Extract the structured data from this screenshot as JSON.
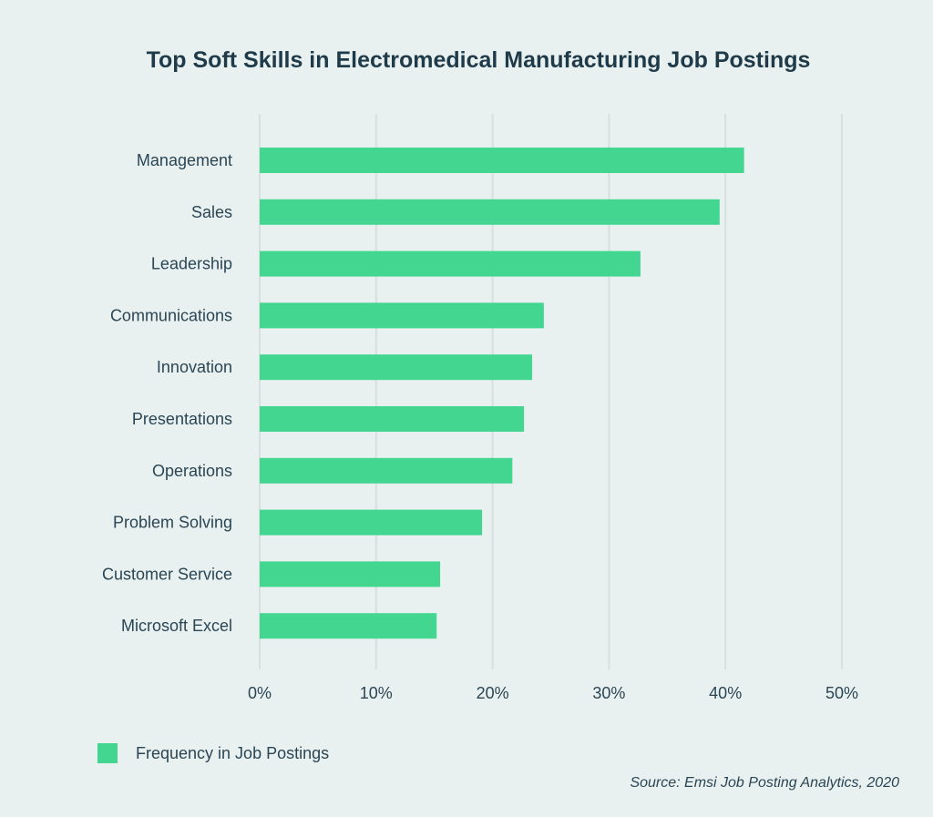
{
  "chart_data": {
    "type": "bar",
    "orientation": "horizontal",
    "title": "Top Soft Skills in Electromedical Manufacturing Job Postings",
    "categories": [
      "Management",
      "Sales",
      "Leadership",
      "Communications",
      "Innovation",
      "Presentations",
      "Operations",
      "Problem Solving",
      "Customer Service",
      "Microsoft Excel"
    ],
    "series": [
      {
        "name": "Frequency in Job Postings",
        "values": [
          41.6,
          39.5,
          32.7,
          24.4,
          23.4,
          22.7,
          21.7,
          19.1,
          15.5,
          15.2
        ],
        "color": "#42d691"
      }
    ],
    "xlim": [
      0,
      50
    ],
    "xticks": [
      "0%",
      "10%",
      "20%",
      "30%",
      "40%",
      "50%"
    ],
    "grid": true,
    "legend_position": "bottom-left",
    "source": "Source: Emsi Job Posting Analytics, 2020"
  }
}
